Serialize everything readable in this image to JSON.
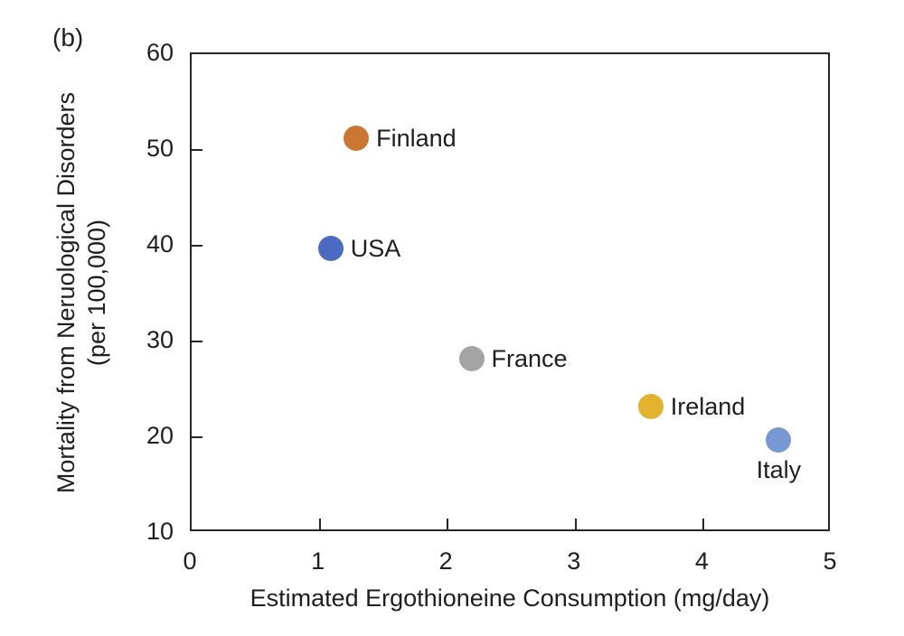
{
  "figure_label": "(b)",
  "chart_data": {
    "type": "scatter",
    "title": "",
    "xlabel": "Estimated Ergothioneine Consumption (mg/day)",
    "ylabel": "Mortality from Neruological Disorders (per 100,000)",
    "ylabel_lines": [
      "Mortality from Neruological Disorders",
      "(per 100,000)"
    ],
    "xlim": [
      0,
      5
    ],
    "ylim": [
      10,
      60
    ],
    "xticks": [
      0,
      1,
      2,
      3,
      4,
      5
    ],
    "yticks": [
      10,
      20,
      30,
      40,
      50,
      60
    ],
    "grid": false,
    "legend_position": "none",
    "axis_color": "#262626",
    "points": [
      {
        "label": "Finland",
        "x": 1.3,
        "y": 51,
        "color": "#cc7634",
        "label_position": "right"
      },
      {
        "label": "USA",
        "x": 1.1,
        "y": 39.5,
        "color": "#4b6ac1",
        "label_position": "right"
      },
      {
        "label": "France",
        "x": 2.2,
        "y": 28,
        "color": "#a4a4a4",
        "label_position": "right"
      },
      {
        "label": "Ireland",
        "x": 3.6,
        "y": 23,
        "color": "#e3b32e",
        "label_position": "right"
      },
      {
        "label": "Italy",
        "x": 4.6,
        "y": 19.5,
        "color": "#7898d4",
        "label_position": "below"
      }
    ]
  }
}
